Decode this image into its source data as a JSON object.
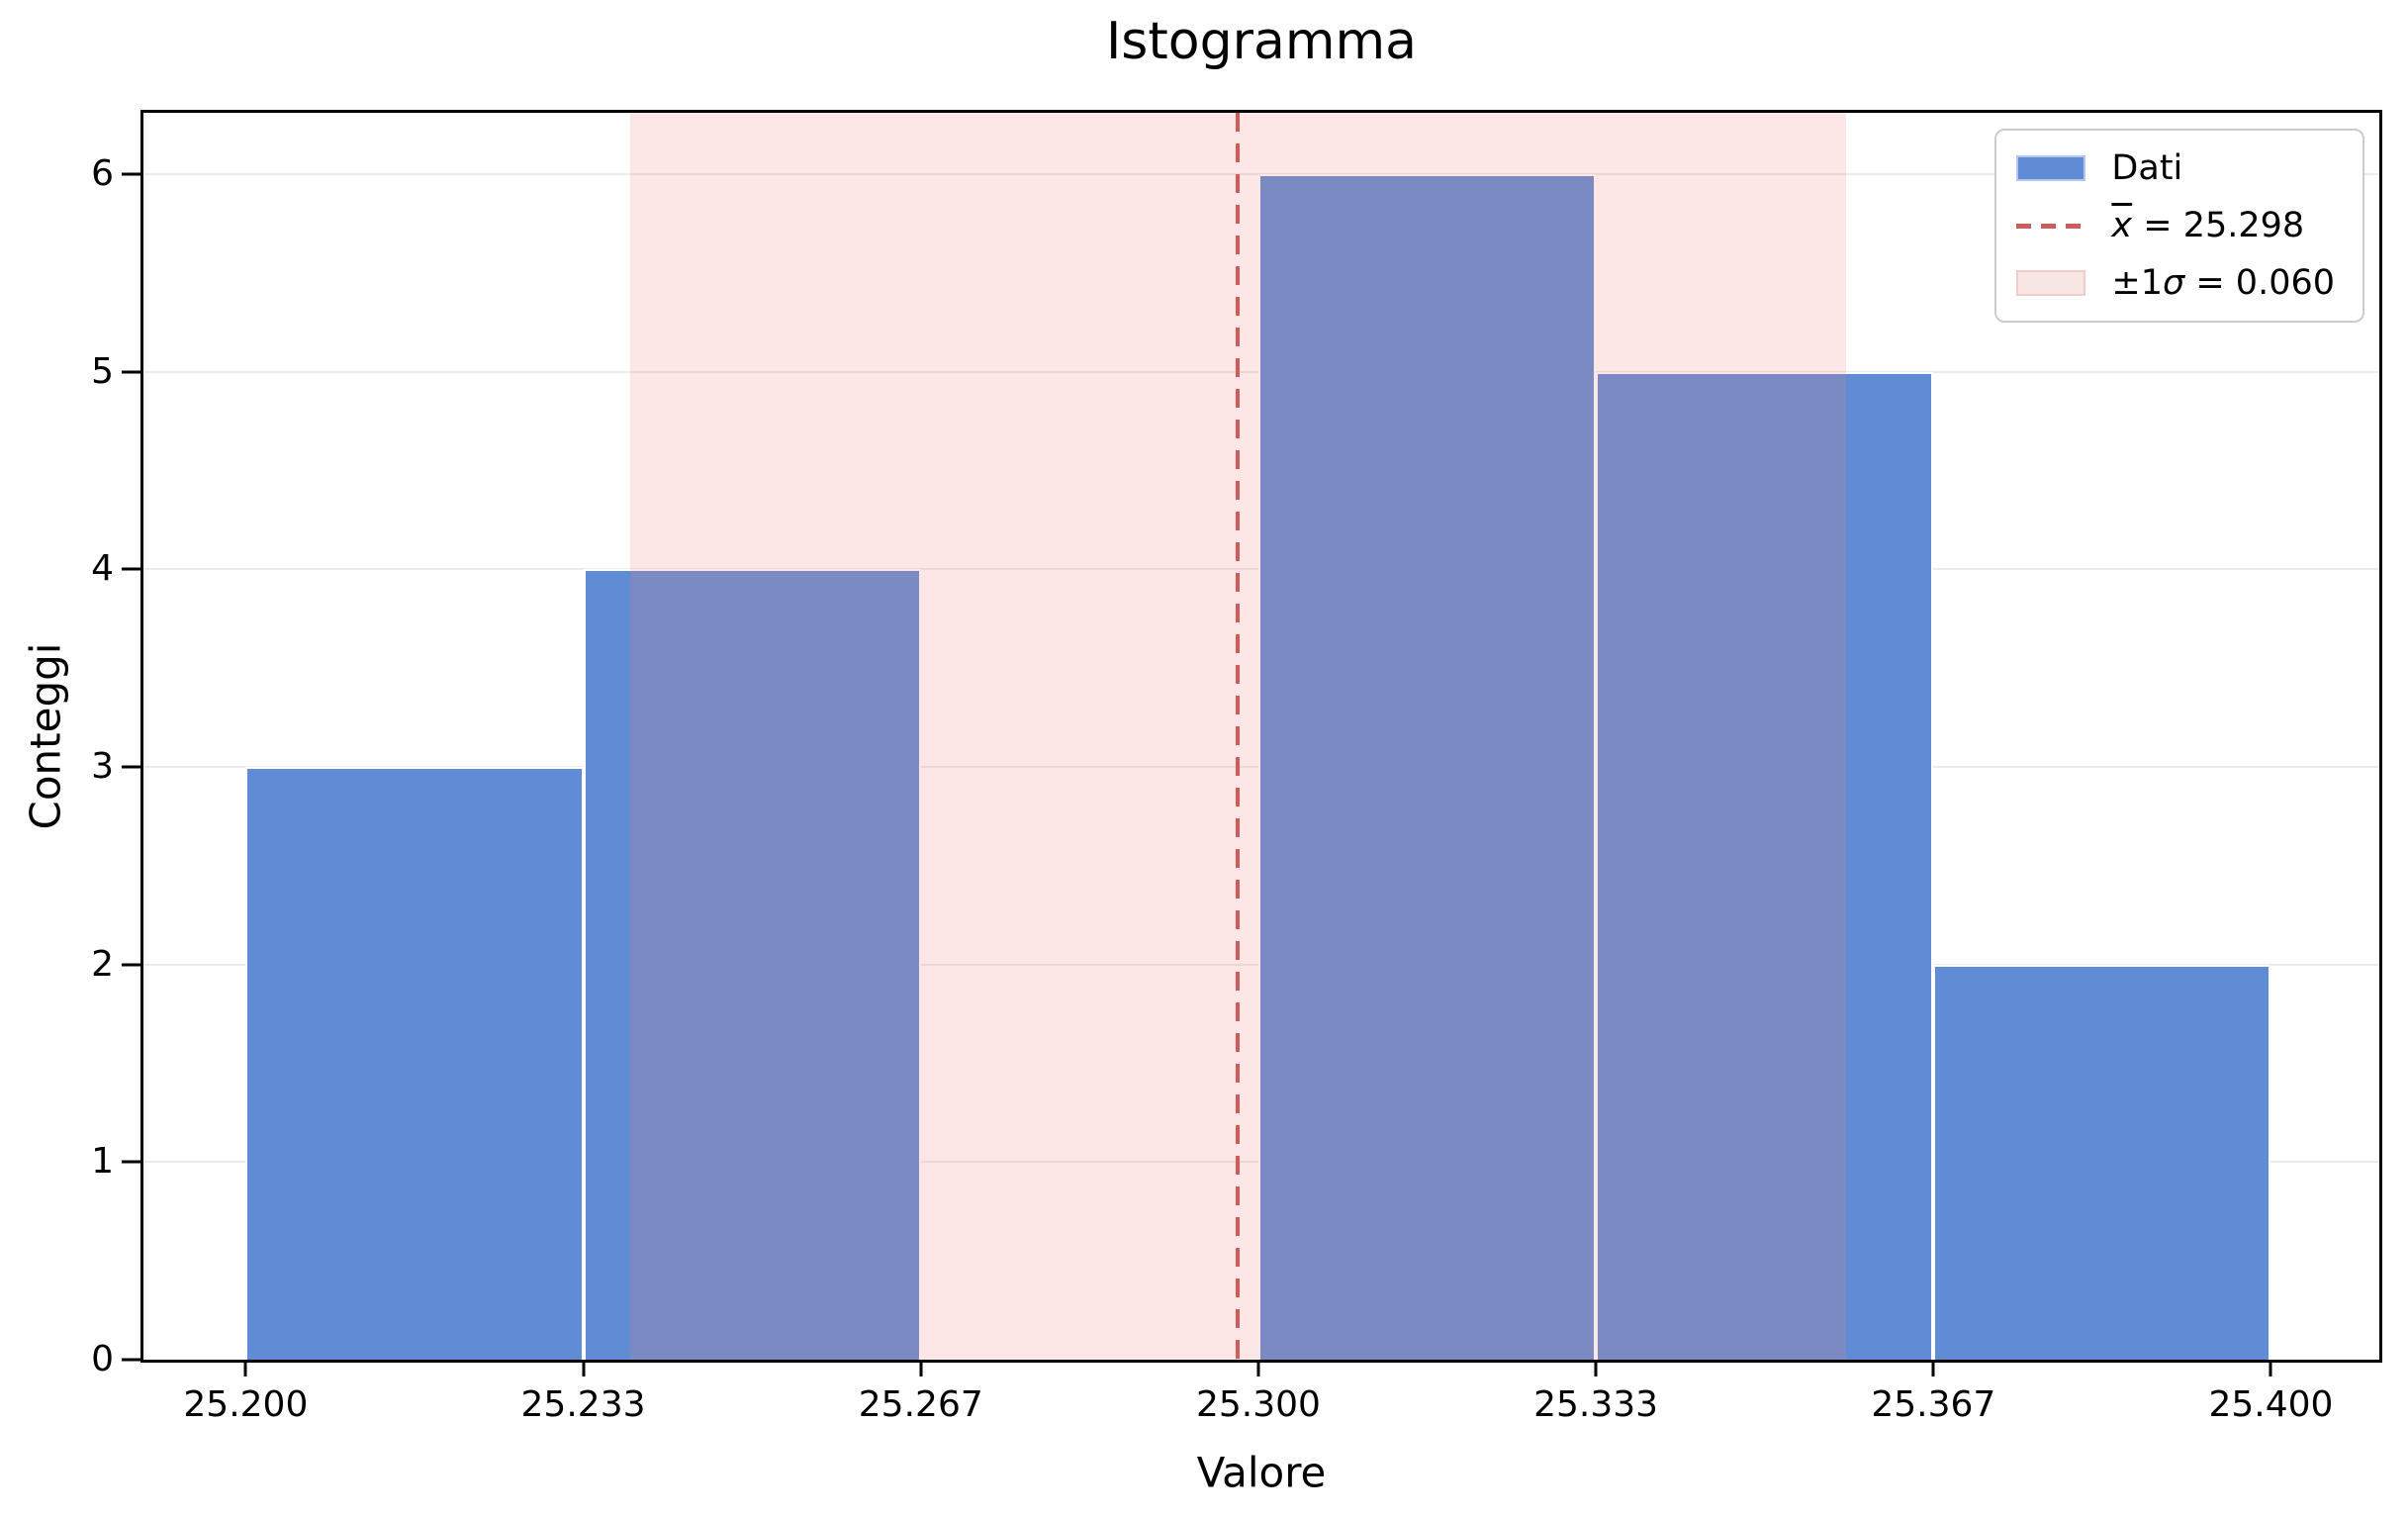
{
  "chart_data": {
    "type": "bar",
    "subtype": "histogram",
    "title": "Istogramma",
    "xlabel": "Valore",
    "ylabel": "Conteggi",
    "bin_edges": [
      25.2,
      25.23333,
      25.26667,
      25.3,
      25.33333,
      25.36667,
      25.4
    ],
    "counts": [
      3,
      4,
      0,
      6,
      5,
      2
    ],
    "mean": 25.298,
    "sigma": 0.06,
    "band": {
      "min": 25.238,
      "max": 25.358
    },
    "xlim": [
      25.1899,
      25.4107
    ],
    "ylim": [
      0,
      6.31
    ],
    "xticks": [
      {
        "v": 25.2,
        "label": "25.200"
      },
      {
        "v": 25.23333,
        "label": "25.233"
      },
      {
        "v": 25.26667,
        "label": "25.267"
      },
      {
        "v": 25.3,
        "label": "25.300"
      },
      {
        "v": 25.33333,
        "label": "25.333"
      },
      {
        "v": 25.36667,
        "label": "25.367"
      },
      {
        "v": 25.4,
        "label": "25.400"
      }
    ],
    "yticks": [
      {
        "v": 0,
        "label": "0"
      },
      {
        "v": 1,
        "label": "1"
      },
      {
        "v": 2,
        "label": "2"
      },
      {
        "v": 3,
        "label": "3"
      },
      {
        "v": 4,
        "label": "4"
      },
      {
        "v": 5,
        "label": "5"
      },
      {
        "v": 6,
        "label": "6"
      }
    ],
    "grid": "horizontal",
    "legend_position": "upper right",
    "colors": {
      "bar": "#5f8cd5",
      "bar_edge": "#ffffff",
      "band": "rgba(240,128,128,0.2)",
      "mean_line": "#cd5c5c",
      "grid": "#ebebeb",
      "spine": "#000000"
    }
  },
  "legend": {
    "data_label": "Dati",
    "mean_var": "x",
    "mean_rest": " = 25.298",
    "sigma_prefix": "±1",
    "sigma_sym": "σ",
    "sigma_rest": " = 0.060"
  }
}
